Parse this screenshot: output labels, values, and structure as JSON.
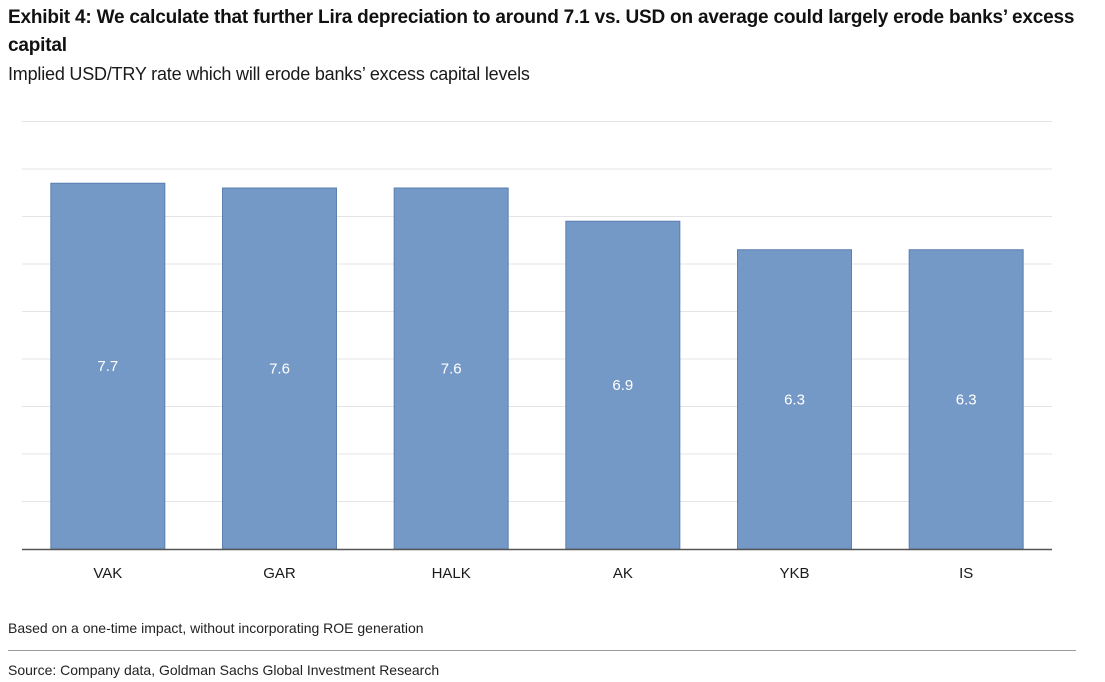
{
  "header": {
    "title": "Exhibit 4: We calculate that further Lira depreciation to around 7.1 vs. USD on average could largely erode banks’ excess capital",
    "subtitle": "Implied USD/TRY rate which will erode banks’ excess capital levels"
  },
  "footer": {
    "note": "Based on a one-time impact, without incorporating ROE generation",
    "source": "Source: Company data, Goldman Sachs Global Investment Research"
  },
  "colors": {
    "bar": "#7599c6",
    "bar_border": "#5a7fb0",
    "grid": "#e4e4e4",
    "axis": "#555555",
    "label": "#ffffff"
  },
  "chart_data": {
    "type": "bar",
    "title": "Implied USD/TRY rate which will erode banks’ excess capital levels",
    "categories": [
      "VAK",
      "GAR",
      "HALK",
      "AK",
      "YKB",
      "IS"
    ],
    "values": [
      7.7,
      7.6,
      7.6,
      6.9,
      6.3,
      6.3
    ],
    "data_labels": [
      "7.7",
      "7.6",
      "7.6",
      "6.9",
      "6.3",
      "6.3"
    ],
    "xlabel": "",
    "ylabel": "",
    "ylim": [
      0,
      9.5
    ],
    "gridlines": [
      1,
      2,
      3,
      4,
      5,
      6,
      7,
      8,
      9
    ],
    "grid": true,
    "y_ticks_shown": false,
    "legend": "none"
  }
}
